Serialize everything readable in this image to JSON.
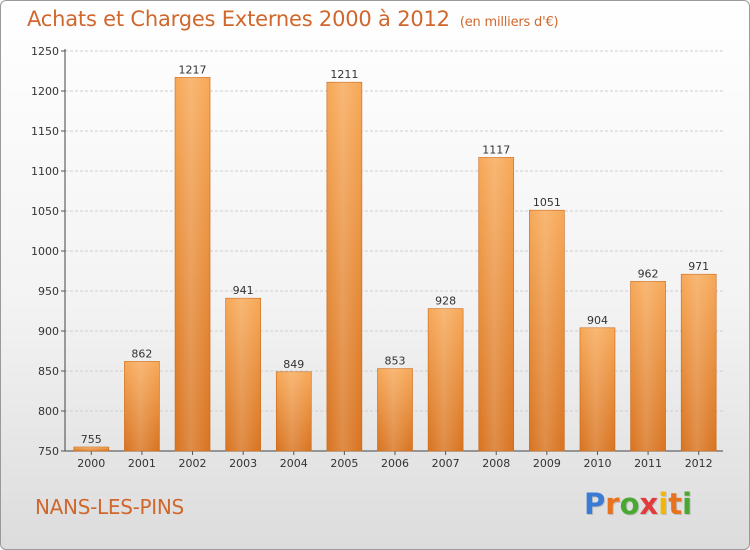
{
  "header": {
    "title": "Achats et Charges Externes 2000 à 2012",
    "unit": "(en milliers d'€)"
  },
  "footer": {
    "place": "NANS-LES-PINS",
    "logo": [
      "P",
      "r",
      "o",
      "x",
      "i",
      "t",
      "i"
    ]
  },
  "chart_data": {
    "type": "bar",
    "title": "Achats et Charges Externes 2000 à 2012",
    "subtitle": "(en milliers d'€)",
    "categories": [
      "2000",
      "2001",
      "2002",
      "2003",
      "2004",
      "2005",
      "2006",
      "2007",
      "2008",
      "2009",
      "2010",
      "2011",
      "2012"
    ],
    "values": [
      755,
      862,
      1217,
      941,
      849,
      1211,
      853,
      928,
      1117,
      1051,
      904,
      962,
      971
    ],
    "ylim": [
      750,
      1250
    ],
    "yticks": [
      750,
      800,
      850,
      900,
      950,
      1000,
      1050,
      1100,
      1150,
      1200,
      1250
    ],
    "grid": true,
    "bar_color": "#f0923a",
    "xlabel": "",
    "ylabel": ""
  }
}
